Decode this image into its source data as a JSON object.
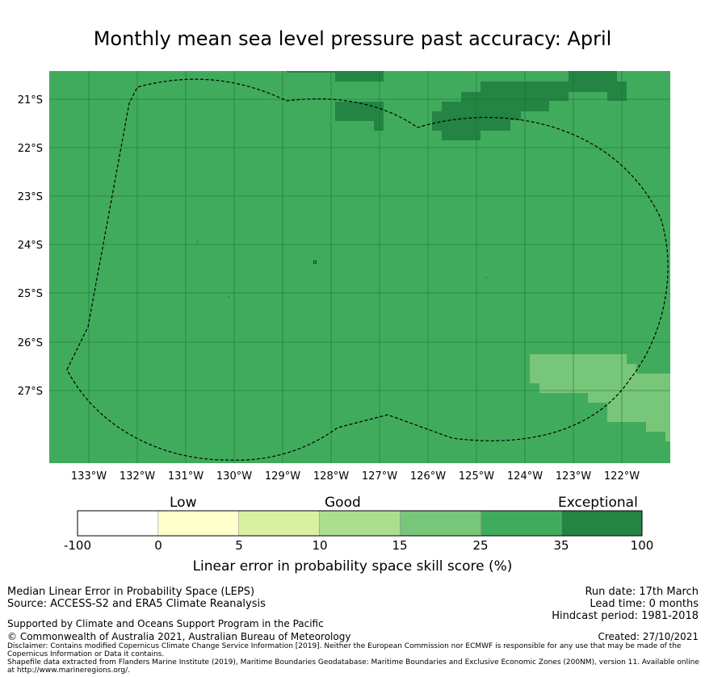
{
  "title": "Monthly mean sea level pressure past accuracy: April",
  "map": {
    "lat_labels": [
      "21°S",
      "22°S",
      "23°S",
      "24°S",
      "25°S",
      "26°S",
      "27°S"
    ],
    "lon_labels": [
      "133°W",
      "132°W",
      "131°W",
      "130°W",
      "129°W",
      "128°W",
      "127°W",
      "126°W",
      "125°W",
      "124°W",
      "123°W",
      "122°W"
    ],
    "colors": {
      "good_25_35": "#41ab5d",
      "exceptional_35_100": "#238443",
      "good_15_25": "#78c679",
      "boundary": "#000000"
    }
  },
  "colorbar": {
    "categories": [
      {
        "label": "Low"
      },
      {
        "label": "Good"
      },
      {
        "label": "Exceptional"
      }
    ],
    "ticks": [
      "-100",
      "0",
      "5",
      "10",
      "15",
      "25",
      "35",
      "100"
    ],
    "bins": [
      {
        "from": -100,
        "to": 0,
        "color": "#ffffff"
      },
      {
        "from": 0,
        "to": 5,
        "color": "#ffffcc"
      },
      {
        "from": 5,
        "to": 10,
        "color": "#d9f0a3"
      },
      {
        "from": 10,
        "to": 15,
        "color": "#addd8e"
      },
      {
        "from": 15,
        "to": 25,
        "color": "#78c679"
      },
      {
        "from": 25,
        "to": 35,
        "color": "#41ab5d"
      },
      {
        "from": 35,
        "to": 100,
        "color": "#238443"
      }
    ],
    "label": "Linear error in probability space skill score (%)"
  },
  "footer": {
    "line1": "Median Linear Error in Probability Space (LEPS)",
    "line2": "Source: ACCESS-S2 and ERA5 Climate Reanalysis",
    "support": "Supported by Climate and Oceans Support Program in the Pacific",
    "copyright": "© Commonwealth of Australia 2021, Australian Bureau of Meteorology",
    "run_date": "Run date: 17th March",
    "lead_time": "Lead time: 0 months",
    "hindcast": "Hindcast period: 1981-2018",
    "created": "Created: 27/10/2021",
    "disclaimer": "Disclaimer: Contains modified Copernicus Climate Change Service Information [2019]. Neither the European Commission nor ECMWF is responsible for any use that may be made of the Copernicus Information or Data it contains.",
    "shapefile": "Shapefile data extracted from Flanders Marine Institute (2019), Maritime Boundaries Geodatabase: Maritime Boundaries and Exclusive Economic Zones (200NM), version 11. Available online at http://www.marineregions.org/."
  }
}
